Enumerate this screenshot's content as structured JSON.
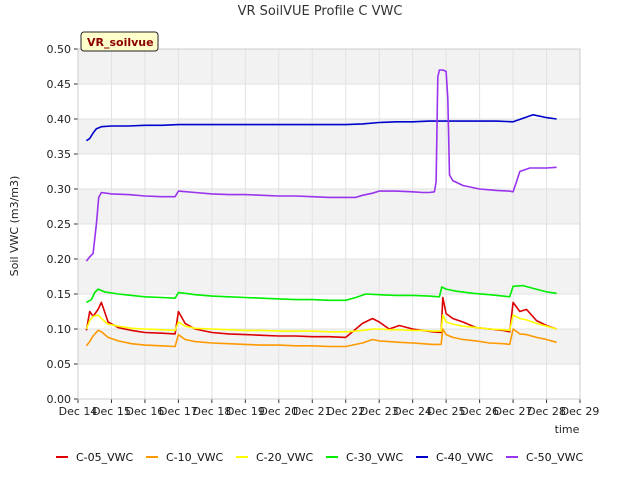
{
  "chart_data": {
    "type": "line",
    "title": "VR SoilVUE Profile C VWC",
    "xlabel": "time",
    "ylabel": "Soil VWC (m3/m3)",
    "station_badge": "VR_soilvue",
    "ylim": [
      0.0,
      0.5
    ],
    "y_ticks": [
      "0.00",
      "0.05",
      "0.10",
      "0.15",
      "0.20",
      "0.25",
      "0.30",
      "0.35",
      "0.40",
      "0.45",
      "0.50"
    ],
    "xlim": [
      14.0,
      29.0
    ],
    "x_ticks": [
      {
        "v": 14,
        "label": "Dec 14"
      },
      {
        "v": 15,
        "label": "Dec 15"
      },
      {
        "v": 16,
        "label": "Dec 16"
      },
      {
        "v": 17,
        "label": "Dec 17"
      },
      {
        "v": 18,
        "label": "Dec 18"
      },
      {
        "v": 19,
        "label": "Dec 19"
      },
      {
        "v": 20,
        "label": "Dec 20"
      },
      {
        "v": 21,
        "label": "Dec 21"
      },
      {
        "v": 22,
        "label": "Dec 22"
      },
      {
        "v": 23,
        "label": "Dec 23"
      },
      {
        "v": 24,
        "label": "Dec 24"
      },
      {
        "v": 25,
        "label": "Dec 25"
      },
      {
        "v": 26,
        "label": "Dec 26"
      },
      {
        "v": 27,
        "label": "Dec 27"
      },
      {
        "v": 28,
        "label": "Dec 28"
      },
      {
        "v": 29,
        "label": "Dec 29"
      }
    ],
    "grid": true,
    "legend_position": "bottom",
    "series": [
      {
        "name": "C-05_VWC",
        "color": "#dd0000",
        "x": [
          14.25,
          14.35,
          14.45,
          14.6,
          14.7,
          14.9,
          15.2,
          15.6,
          16.0,
          16.5,
          16.9,
          17.0,
          17.2,
          17.5,
          18.0,
          18.5,
          19.0,
          19.5,
          20.0,
          20.5,
          21.0,
          21.5,
          22.0,
          22.3,
          22.5,
          22.8,
          23.0,
          23.3,
          23.6,
          24.0,
          24.3,
          24.6,
          24.85,
          24.9,
          25.0,
          25.2,
          25.5,
          25.9,
          26.3,
          26.7,
          26.9,
          27.0,
          27.2,
          27.4,
          27.7,
          28.0,
          28.3
        ],
        "y": [
          0.098,
          0.125,
          0.118,
          0.128,
          0.138,
          0.11,
          0.102,
          0.098,
          0.095,
          0.094,
          0.093,
          0.125,
          0.108,
          0.1,
          0.095,
          0.093,
          0.092,
          0.091,
          0.09,
          0.09,
          0.089,
          0.089,
          0.088,
          0.1,
          0.108,
          0.115,
          0.11,
          0.1,
          0.105,
          0.1,
          0.098,
          0.096,
          0.095,
          0.145,
          0.122,
          0.115,
          0.11,
          0.102,
          0.1,
          0.098,
          0.096,
          0.138,
          0.125,
          0.128,
          0.112,
          0.105,
          0.1
        ]
      },
      {
        "name": "C-10_VWC",
        "color": "#ff9900",
        "x": [
          14.25,
          14.35,
          14.45,
          14.6,
          14.7,
          14.9,
          15.2,
          15.6,
          16.0,
          16.5,
          16.9,
          17.0,
          17.2,
          17.5,
          18.0,
          18.5,
          19.0,
          19.5,
          20.0,
          20.5,
          21.0,
          21.5,
          22.0,
          22.3,
          22.5,
          22.8,
          23.0,
          23.3,
          23.6,
          24.0,
          24.3,
          24.6,
          24.85,
          24.9,
          25.0,
          25.2,
          25.5,
          25.9,
          26.3,
          26.7,
          26.9,
          27.0,
          27.2,
          27.4,
          27.7,
          28.0,
          28.3
        ],
        "y": [
          0.076,
          0.082,
          0.09,
          0.098,
          0.096,
          0.088,
          0.083,
          0.079,
          0.077,
          0.076,
          0.075,
          0.092,
          0.085,
          0.082,
          0.08,
          0.079,
          0.078,
          0.077,
          0.077,
          0.076,
          0.076,
          0.075,
          0.075,
          0.078,
          0.08,
          0.085,
          0.083,
          0.082,
          0.081,
          0.08,
          0.079,
          0.078,
          0.078,
          0.1,
          0.092,
          0.088,
          0.085,
          0.083,
          0.08,
          0.079,
          0.078,
          0.1,
          0.093,
          0.092,
          0.088,
          0.085,
          0.081
        ]
      },
      {
        "name": "C-20_VWC",
        "color": "#ffff00",
        "x": [
          14.25,
          14.35,
          14.45,
          14.6,
          14.7,
          14.9,
          15.2,
          15.6,
          16.0,
          16.5,
          16.9,
          17.0,
          17.2,
          17.5,
          18.0,
          18.5,
          19.0,
          19.5,
          20.0,
          20.5,
          21.0,
          21.5,
          22.0,
          22.3,
          22.5,
          22.8,
          23.0,
          23.3,
          23.6,
          24.0,
          24.3,
          24.6,
          24.85,
          24.9,
          25.0,
          25.2,
          25.5,
          25.9,
          26.3,
          26.7,
          26.9,
          27.0,
          27.2,
          27.4,
          27.7,
          28.0,
          28.3
        ],
        "y": [
          0.1,
          0.112,
          0.118,
          0.12,
          0.115,
          0.107,
          0.104,
          0.101,
          0.1,
          0.099,
          0.098,
          0.11,
          0.104,
          0.101,
          0.1,
          0.099,
          0.098,
          0.098,
          0.097,
          0.097,
          0.097,
          0.096,
          0.096,
          0.097,
          0.098,
          0.1,
          0.1,
          0.099,
          0.099,
          0.098,
          0.098,
          0.097,
          0.097,
          0.12,
          0.11,
          0.107,
          0.104,
          0.102,
          0.1,
          0.099,
          0.098,
          0.12,
          0.115,
          0.113,
          0.108,
          0.104,
          0.1
        ]
      },
      {
        "name": "C-30_VWC",
        "color": "#00ee00",
        "x": [
          14.25,
          14.4,
          14.5,
          14.6,
          14.8,
          15.2,
          15.6,
          16.0,
          16.5,
          16.9,
          17.0,
          17.2,
          17.5,
          18.0,
          18.5,
          19.0,
          19.5,
          20.0,
          20.5,
          21.0,
          21.5,
          22.0,
          22.3,
          22.6,
          23.0,
          23.5,
          24.0,
          24.5,
          24.8,
          24.87,
          25.0,
          25.3,
          25.8,
          26.3,
          26.7,
          26.9,
          27.0,
          27.3,
          27.6,
          28.0,
          28.3
        ],
        "y": [
          0.138,
          0.142,
          0.152,
          0.157,
          0.153,
          0.15,
          0.148,
          0.146,
          0.145,
          0.144,
          0.152,
          0.151,
          0.149,
          0.147,
          0.146,
          0.145,
          0.144,
          0.143,
          0.142,
          0.142,
          0.141,
          0.141,
          0.145,
          0.15,
          0.149,
          0.148,
          0.148,
          0.147,
          0.146,
          0.16,
          0.157,
          0.154,
          0.151,
          0.149,
          0.147,
          0.146,
          0.161,
          0.162,
          0.158,
          0.153,
          0.151
        ]
      },
      {
        "name": "C-40_VWC",
        "color": "#0000cc",
        "x": [
          14.25,
          14.35,
          14.45,
          14.55,
          14.7,
          15.0,
          15.5,
          16.0,
          16.5,
          17.0,
          17.5,
          18.0,
          18.5,
          19.0,
          19.5,
          20.0,
          20.5,
          21.0,
          21.5,
          22.0,
          22.5,
          23.0,
          23.5,
          24.0,
          24.5,
          25.0,
          25.5,
          26.0,
          26.5,
          27.0,
          27.3,
          27.6,
          28.0,
          28.3
        ],
        "y": [
          0.369,
          0.372,
          0.38,
          0.386,
          0.389,
          0.39,
          0.39,
          0.391,
          0.391,
          0.392,
          0.392,
          0.392,
          0.392,
          0.392,
          0.392,
          0.392,
          0.392,
          0.392,
          0.392,
          0.392,
          0.393,
          0.395,
          0.396,
          0.396,
          0.397,
          0.397,
          0.397,
          0.397,
          0.397,
          0.396,
          0.401,
          0.406,
          0.402,
          0.4
        ]
      },
      {
        "name": "C-50_VWC",
        "color": "#9933ee",
        "x": [
          14.25,
          14.35,
          14.45,
          14.55,
          14.62,
          14.7,
          15.0,
          15.5,
          16.0,
          16.5,
          16.9,
          17.0,
          17.5,
          18.0,
          18.5,
          19.0,
          19.5,
          20.0,
          20.5,
          21.0,
          21.5,
          22.0,
          22.3,
          22.5,
          22.8,
          23.0,
          23.5,
          24.0,
          24.3,
          24.5,
          24.65,
          24.7,
          24.75,
          24.8,
          24.9,
          25.0,
          25.05,
          25.1,
          25.2,
          25.5,
          26.0,
          26.5,
          26.9,
          27.0,
          27.1,
          27.2,
          27.5,
          28.0,
          28.3
        ],
        "y": [
          0.197,
          0.203,
          0.208,
          0.25,
          0.288,
          0.295,
          0.293,
          0.292,
          0.29,
          0.289,
          0.289,
          0.297,
          0.295,
          0.293,
          0.292,
          0.292,
          0.291,
          0.29,
          0.29,
          0.289,
          0.288,
          0.288,
          0.288,
          0.291,
          0.294,
          0.297,
          0.297,
          0.296,
          0.295,
          0.295,
          0.296,
          0.31,
          0.46,
          0.47,
          0.47,
          0.468,
          0.43,
          0.32,
          0.312,
          0.305,
          0.3,
          0.298,
          0.297,
          0.296,
          0.31,
          0.325,
          0.33,
          0.33,
          0.331
        ]
      }
    ]
  }
}
